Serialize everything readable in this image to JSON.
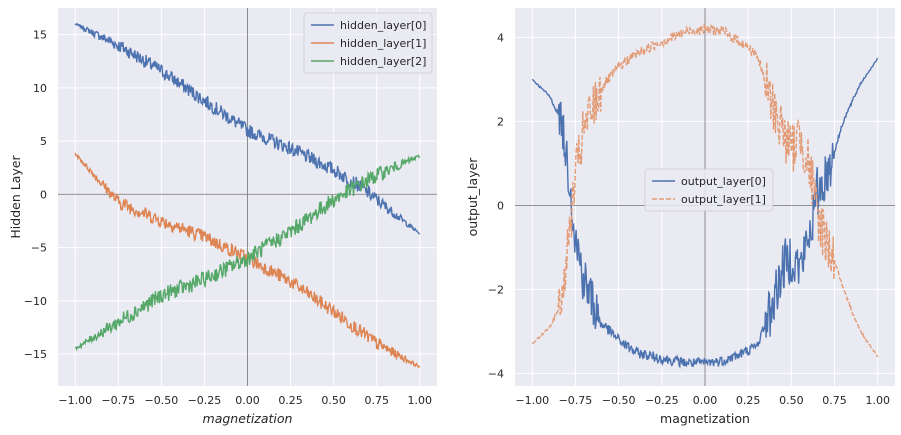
{
  "chart_data": [
    {
      "type": "line",
      "xlabel": "magnetization",
      "ylabel": "Hidden Layer",
      "xlim": [
        -1.1,
        1.1
      ],
      "ylim": [
        -18,
        17.5
      ],
      "xticks": [
        -1.0,
        -0.75,
        -0.5,
        -0.25,
        0.0,
        0.25,
        0.5,
        0.75,
        1.0
      ],
      "xtick_labels": [
        "−1.00",
        "−0.75",
        "−0.50",
        "−0.25",
        "0.00",
        "0.25",
        "0.50",
        "0.75",
        "1.00"
      ],
      "yticks": [
        -15,
        -10,
        -5,
        0,
        5,
        10,
        15
      ],
      "ytick_labels": [
        "−15",
        "−10",
        "−5",
        "0",
        "5",
        "10",
        "15"
      ],
      "grid": true,
      "legend_position": "top-right",
      "series": [
        {
          "name": "hidden_layer[0]",
          "color": "#4c72b0",
          "style": "solid",
          "noise_peak": 1.2,
          "x": [
            -1.0,
            -0.75,
            -0.5,
            -0.25,
            0.0,
            0.25,
            0.5,
            0.65,
            0.75,
            1.0
          ],
          "y": [
            16.0,
            14.0,
            11.6,
            8.8,
            6.0,
            4.3,
            2.3,
            0.8,
            -0.5,
            -3.7
          ]
        },
        {
          "name": "hidden_layer[1]",
          "color": "#dd8452",
          "style": "solid",
          "noise_peak": 1.2,
          "x": [
            -1.0,
            -0.75,
            -0.5,
            -0.25,
            0.0,
            0.25,
            0.5,
            0.75,
            1.0
          ],
          "y": [
            3.8,
            -0.7,
            -2.5,
            -4.0,
            -6.0,
            -8.2,
            -11.0,
            -14.0,
            -16.2
          ]
        },
        {
          "name": "hidden_layer[2]",
          "color": "#55a868",
          "style": "solid",
          "noise_peak": 1.4,
          "x": [
            -1.0,
            -0.75,
            -0.5,
            -0.25,
            0.0,
            0.25,
            0.5,
            0.75,
            1.0
          ],
          "y": [
            -14.5,
            -12.0,
            -9.5,
            -8.0,
            -6.0,
            -3.5,
            -0.5,
            1.8,
            3.6
          ]
        }
      ]
    },
    {
      "type": "line",
      "xlabel": "magnetization",
      "ylabel": "output_layer",
      "xlim": [
        -1.1,
        1.1
      ],
      "ylim": [
        -4.3,
        4.7
      ],
      "xticks": [
        -1.0,
        -0.75,
        -0.5,
        -0.25,
        0.0,
        0.25,
        0.5,
        0.75,
        1.0
      ],
      "xtick_labels": [
        "−1.00",
        "−0.75",
        "−0.50",
        "−0.25",
        "0.00",
        "0.25",
        "0.50",
        "0.75",
        "1.00"
      ],
      "yticks": [
        -4,
        -2,
        0,
        2,
        4
      ],
      "ytick_labels": [
        "−4",
        "−2",
        "0",
        "2",
        "4"
      ],
      "grid": true,
      "legend_position": "center-right",
      "series": [
        {
          "name": "output_layer[0]",
          "color": "#4c72b0",
          "style": "solid",
          "noise_peak": 1.4,
          "x": [
            -1.0,
            -0.9,
            -0.83,
            -0.78,
            -0.75,
            -0.7,
            -0.6,
            -0.5,
            -0.4,
            -0.25,
            -0.1,
            0.0,
            0.1,
            0.2,
            0.3,
            0.38,
            0.45,
            0.5,
            0.55,
            0.6,
            0.65,
            0.7,
            0.75,
            0.8,
            0.9,
            1.0
          ],
          "y": [
            3.0,
            2.6,
            2.0,
            0.5,
            -0.8,
            -1.8,
            -2.8,
            -3.2,
            -3.5,
            -3.65,
            -3.75,
            -3.75,
            -3.7,
            -3.55,
            -3.35,
            -2.5,
            -1.5,
            -1.2,
            -1.5,
            -0.8,
            0.3,
            0.7,
            1.3,
            2.0,
            2.9,
            3.5
          ]
        },
        {
          "name": "output_layer[1]",
          "color": "#e39b75",
          "style": "dashed",
          "noise_peak": 1.4,
          "x": [
            -1.0,
            -0.9,
            -0.83,
            -0.78,
            -0.75,
            -0.7,
            -0.6,
            -0.5,
            -0.4,
            -0.25,
            -0.1,
            0.0,
            0.1,
            0.2,
            0.3,
            0.38,
            0.45,
            0.5,
            0.55,
            0.6,
            0.65,
            0.7,
            0.75,
            0.8,
            0.9,
            1.0
          ],
          "y": [
            -3.3,
            -2.9,
            -2.3,
            -0.5,
            0.7,
            1.8,
            2.8,
            3.3,
            3.6,
            3.9,
            4.15,
            4.2,
            4.15,
            3.9,
            3.6,
            2.5,
            1.8,
            1.3,
            1.7,
            1.0,
            -0.2,
            -0.8,
            -1.3,
            -2.0,
            -3.0,
            -3.6
          ]
        }
      ]
    }
  ]
}
